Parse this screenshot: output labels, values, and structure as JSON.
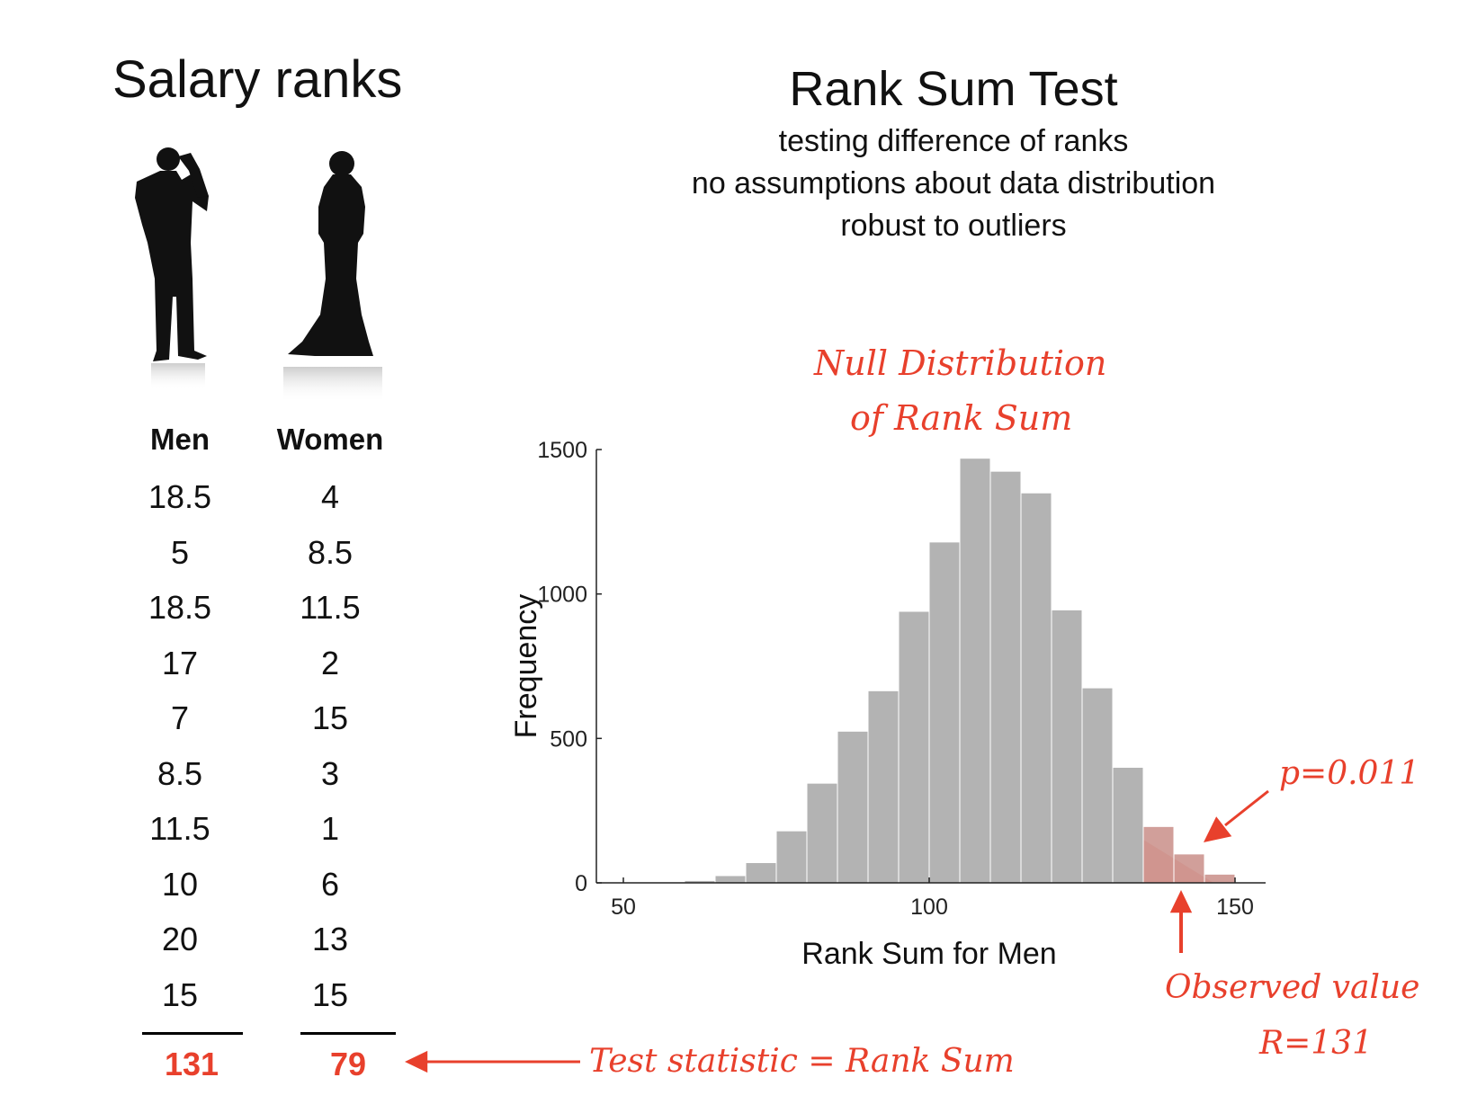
{
  "left": {
    "title": "Salary ranks",
    "columns": [
      {
        "header": "Men",
        "values": [
          "18.5",
          "5",
          "18.5",
          "17",
          "7",
          "8.5",
          "11.5",
          "10",
          "20",
          "15"
        ],
        "total": "131"
      },
      {
        "header": "Women",
        "values": [
          "4",
          "8.5",
          "11.5",
          "2",
          "15",
          "3",
          "1",
          "6",
          "13",
          "15"
        ],
        "total": "79"
      }
    ]
  },
  "right": {
    "title": "Rank Sum Test",
    "subtitle_lines": [
      "testing difference of ranks",
      "no assumptions about data distribution",
      "robust to outliers"
    ]
  },
  "annotations": {
    "null_line1": "Null Distribution",
    "null_line2": "of Rank Sum",
    "pvalue": "p=0.011",
    "observed_line1": "Observed value",
    "observed_line2": "R=131",
    "test_stat": "Test statistic = Rank Sum"
  },
  "colors": {
    "bar": "#b3b3b3",
    "accent": "#e8402c",
    "tail": "#f4a89c"
  },
  "icons": [
    "man-silhouette-icon",
    "woman-silhouette-icon",
    "arrow-left-icon",
    "arrow-up-icon",
    "arrow-diagonal-icon"
  ],
  "chart_data": {
    "type": "bar",
    "xlabel": "Rank Sum for Men",
    "ylabel": "Frequency",
    "xlim": [
      50,
      155
    ],
    "ylim": [
      0,
      1500
    ],
    "xticks": [
      50,
      100,
      150
    ],
    "yticks": [
      0,
      500,
      1000,
      1500
    ],
    "bin_width": 5,
    "bin_starts": [
      55,
      60,
      65,
      70,
      75,
      80,
      85,
      90,
      95,
      100,
      105,
      110,
      115,
      120,
      125,
      130,
      135,
      140,
      145
    ],
    "values": [
      3,
      8,
      25,
      70,
      180,
      345,
      525,
      665,
      940,
      1180,
      1470,
      1425,
      1350,
      945,
      675,
      400,
      195,
      100,
      30
    ],
    "observed_value": 131,
    "p_value": 0.011
  }
}
